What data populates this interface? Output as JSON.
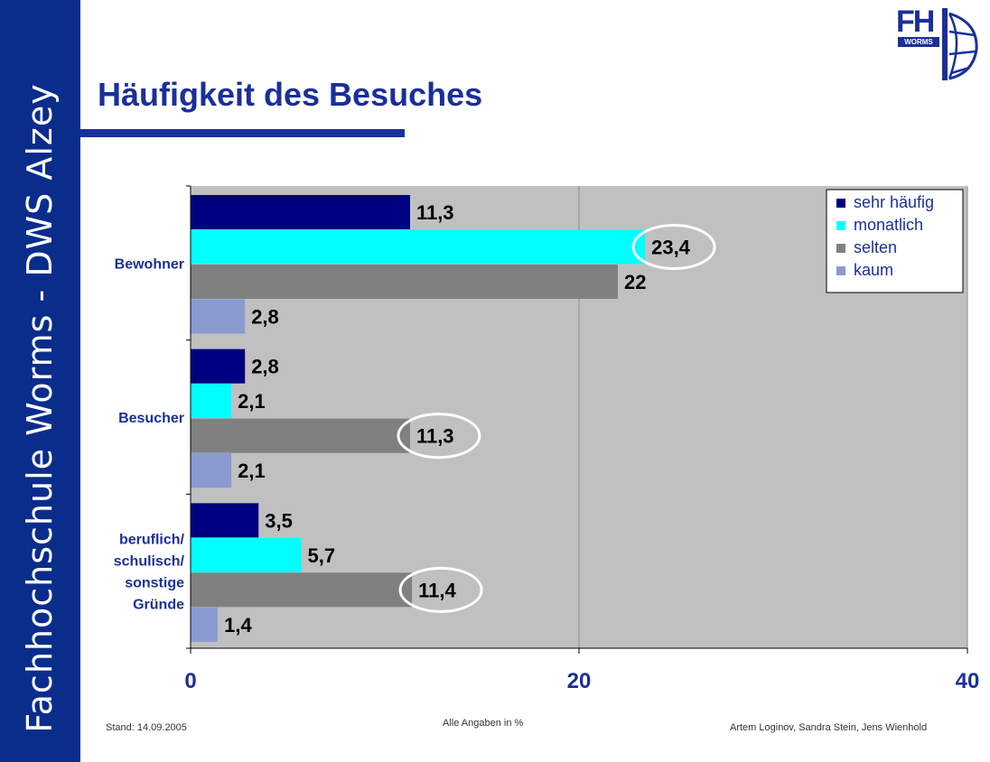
{
  "sidebar": {
    "text": "Fachhochschule Worms - DWS Alzey"
  },
  "header": {
    "title": "Häufigkeit des Besuches"
  },
  "logo": {
    "text": "FH",
    "subtext": "WORMS"
  },
  "footer": {
    "left": "Stand: 14.09.2005",
    "center": "Alle Angaben in %",
    "right": "Artem Loginov, Sandra Stein, Jens Wienhold"
  },
  "colors": {
    "brand": "#1b2f9a",
    "plot_bg": "#c0c0c0",
    "sehr_haeufig": "#000080",
    "monatlich": "#00ffff",
    "selten": "#808080",
    "kaum": "#8a9bd2"
  },
  "chart_data": {
    "type": "bar",
    "orientation": "horizontal",
    "categories": [
      "Bewohner",
      "Besucher",
      "beruflich/ schulisch/ sonstige Gründe"
    ],
    "category_lines": [
      [
        "Bewohner"
      ],
      [
        "Besucher"
      ],
      [
        "beruflich/",
        "schulisch/",
        "sonstige",
        "Gründe"
      ]
    ],
    "series": [
      {
        "name": "sehr häufig",
        "values": [
          11.3,
          2.8,
          3.5
        ],
        "labels": [
          "11,3",
          "2,8",
          "3,5"
        ]
      },
      {
        "name": "monatlich",
        "values": [
          23.4,
          2.1,
          5.7
        ],
        "labels": [
          "23,4",
          "2,1",
          "5,7"
        ]
      },
      {
        "name": "selten",
        "values": [
          22,
          11.3,
          11.4
        ],
        "labels": [
          "22",
          "11,3",
          "11,4"
        ]
      },
      {
        "name": "kaum",
        "values": [
          2.8,
          2.1,
          1.4
        ],
        "labels": [
          "2,8",
          "2,1",
          "1,4"
        ]
      }
    ],
    "xlim": [
      0,
      40
    ],
    "xticks": [
      0,
      20,
      40
    ],
    "xtick_labels": [
      "0",
      "20",
      "40"
    ],
    "grid": true,
    "legend": "top-right",
    "highlighted": [
      {
        "series": "monatlich",
        "category": "Bewohner"
      },
      {
        "series": "selten",
        "category": "Besucher"
      },
      {
        "series": "selten",
        "category": "beruflich/ schulisch/ sonstige Gründe"
      }
    ]
  }
}
